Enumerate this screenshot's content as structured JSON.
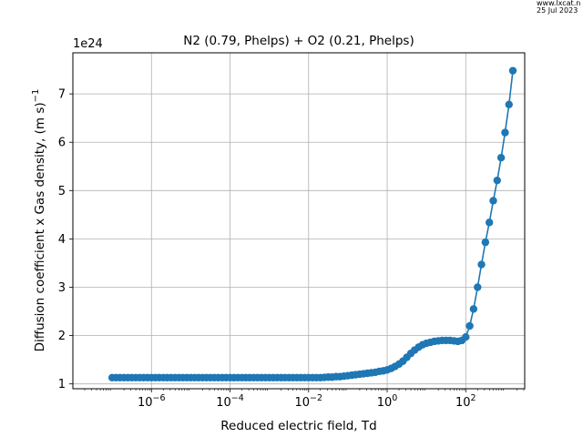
{
  "watermark": {
    "line1": "www.lxcat.n",
    "line2": "25 Jul 2023"
  },
  "chart_data": {
    "type": "line",
    "title": "N2 (0.79, Phelps) + O2 (0.21, Phelps)",
    "xlabel": "Reduced electric field, Td",
    "ylabel": "Diffusion coefficient x Gas density, (m s)",
    "ylabel_superscript": "−1",
    "offset_label": "1e24",
    "xscale": "log",
    "xlim": [
      1e-08,
      3162
    ],
    "ylim": [
      0.9,
      7.85
    ],
    "grid": true,
    "x_ticks": [
      1e-06,
      0.0001,
      0.01,
      1,
      100
    ],
    "x_tick_labels": [
      {
        "base": "10",
        "exp": "−6"
      },
      {
        "base": "10",
        "exp": "−4"
      },
      {
        "base": "10",
        "exp": "−2"
      },
      {
        "base": "10",
        "exp": "0"
      },
      {
        "base": "10",
        "exp": "2"
      }
    ],
    "y_ticks": [
      1,
      2,
      3,
      4,
      5,
      6,
      7
    ],
    "y_tick_labels": [
      "1",
      "2",
      "3",
      "4",
      "5",
      "6",
      "7"
    ],
    "color": "#1f77b4",
    "series": [
      {
        "points": [
          [
            1e-07,
            1.13
          ],
          [
            1.26e-07,
            1.13
          ],
          [
            1.58e-07,
            1.13
          ],
          [
            2e-07,
            1.13
          ],
          [
            2.51e-07,
            1.13
          ],
          [
            3.16e-07,
            1.13
          ],
          [
            3.98e-07,
            1.13
          ],
          [
            5.01e-07,
            1.13
          ],
          [
            6.31e-07,
            1.13
          ],
          [
            7.94e-07,
            1.13
          ],
          [
            1e-06,
            1.13
          ],
          [
            1.26e-06,
            1.13
          ],
          [
            1.58e-06,
            1.13
          ],
          [
            2e-06,
            1.13
          ],
          [
            2.51e-06,
            1.13
          ],
          [
            3.16e-06,
            1.13
          ],
          [
            3.98e-06,
            1.13
          ],
          [
            5.01e-06,
            1.13
          ],
          [
            6.31e-06,
            1.13
          ],
          [
            7.94e-06,
            1.13
          ],
          [
            1e-05,
            1.13
          ],
          [
            1.26e-05,
            1.13
          ],
          [
            1.58e-05,
            1.13
          ],
          [
            2e-05,
            1.13
          ],
          [
            2.51e-05,
            1.13
          ],
          [
            3.16e-05,
            1.13
          ],
          [
            3.98e-05,
            1.13
          ],
          [
            5.01e-05,
            1.13
          ],
          [
            6.31e-05,
            1.13
          ],
          [
            7.94e-05,
            1.13
          ],
          [
            0.0001,
            1.13
          ],
          [
            0.000126,
            1.13
          ],
          [
            0.000158,
            1.13
          ],
          [
            0.0002,
            1.13
          ],
          [
            0.000251,
            1.13
          ],
          [
            0.000316,
            1.13
          ],
          [
            0.000398,
            1.13
          ],
          [
            0.000501,
            1.13
          ],
          [
            0.000631,
            1.13
          ],
          [
            0.000794,
            1.13
          ],
          [
            0.001,
            1.13
          ],
          [
            0.00126,
            1.13
          ],
          [
            0.00158,
            1.13
          ],
          [
            0.002,
            1.13
          ],
          [
            0.00251,
            1.13
          ],
          [
            0.00316,
            1.13
          ],
          [
            0.00398,
            1.13
          ],
          [
            0.00501,
            1.13
          ],
          [
            0.00631,
            1.13
          ],
          [
            0.00794,
            1.13
          ],
          [
            0.01,
            1.13
          ],
          [
            0.0126,
            1.13
          ],
          [
            0.0158,
            1.13
          ],
          [
            0.02,
            1.13
          ],
          [
            0.0251,
            1.135
          ],
          [
            0.0316,
            1.14
          ],
          [
            0.0398,
            1.14
          ],
          [
            0.0501,
            1.15
          ],
          [
            0.0631,
            1.15
          ],
          [
            0.0794,
            1.16
          ],
          [
            0.1,
            1.17
          ],
          [
            0.126,
            1.18
          ],
          [
            0.158,
            1.19
          ],
          [
            0.2,
            1.2
          ],
          [
            0.251,
            1.21
          ],
          [
            0.316,
            1.22
          ],
          [
            0.398,
            1.23
          ],
          [
            0.501,
            1.24
          ],
          [
            0.631,
            1.26
          ],
          [
            0.794,
            1.27
          ],
          [
            1.0,
            1.29
          ],
          [
            1.26,
            1.32
          ],
          [
            1.58,
            1.36
          ],
          [
            2.0,
            1.41
          ],
          [
            2.51,
            1.47
          ],
          [
            3.16,
            1.55
          ],
          [
            3.98,
            1.63
          ],
          [
            5.01,
            1.7
          ],
          [
            6.31,
            1.76
          ],
          [
            7.94,
            1.81
          ],
          [
            10,
            1.84
          ],
          [
            12.6,
            1.86
          ],
          [
            15.8,
            1.88
          ],
          [
            20,
            1.89
          ],
          [
            25.1,
            1.9
          ],
          [
            31.6,
            1.9
          ],
          [
            39.8,
            1.9
          ],
          [
            50.1,
            1.89
          ],
          [
            63.1,
            1.88
          ],
          [
            79.4,
            1.9
          ],
          [
            100,
            1.97
          ],
          [
            126,
            2.2
          ],
          [
            158,
            2.55
          ],
          [
            200,
            3.0
          ],
          [
            251,
            3.47
          ],
          [
            316,
            3.93
          ],
          [
            398,
            4.34
          ],
          [
            501,
            4.79
          ],
          [
            631,
            5.21
          ],
          [
            794,
            5.68
          ],
          [
            1000,
            6.2
          ],
          [
            1260,
            6.78
          ],
          [
            1580,
            7.48
          ]
        ]
      }
    ]
  }
}
